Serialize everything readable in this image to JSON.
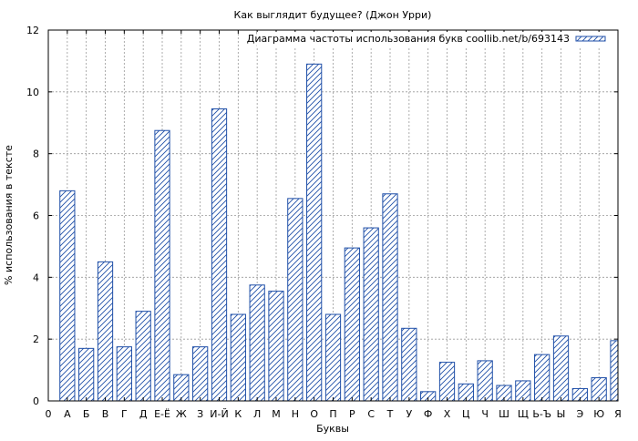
{
  "chart_data": {
    "type": "bar",
    "title": "Как выглядит будущее? (Джон Урри)",
    "xlabel": "Буквы",
    "ylabel": "% использования в тексте",
    "ylim": [
      0,
      12
    ],
    "yticks": [
      "0",
      "2",
      "4",
      "6",
      "8",
      "10",
      "12"
    ],
    "x_start_label": "0",
    "grid": true,
    "legend_position": "top-right",
    "series": [
      {
        "name": "Диаграмма частоты использования букв coollib.net/b/693143",
        "color": "#1f4fa8"
      }
    ],
    "categories": [
      "А",
      "Б",
      "В",
      "Г",
      "Д",
      "Е-Ё",
      "Ж",
      "З",
      "И-Й",
      "К",
      "Л",
      "М",
      "Н",
      "О",
      "П",
      "Р",
      "С",
      "Т",
      "У",
      "Ф",
      "Х",
      "Ц",
      "Ч",
      "Ш",
      "Щ",
      "Ь-Ъ",
      "Ы",
      "Э",
      "Ю",
      "Я"
    ],
    "values": [
      6.8,
      1.7,
      4.5,
      1.75,
      2.9,
      8.75,
      0.85,
      1.75,
      9.45,
      2.8,
      3.75,
      3.55,
      6.55,
      10.9,
      2.8,
      4.95,
      5.6,
      6.7,
      2.35,
      0.3,
      1.25,
      0.55,
      1.3,
      0.5,
      0.65,
      1.5,
      2.1,
      0.4,
      0.75,
      1.95
    ]
  }
}
